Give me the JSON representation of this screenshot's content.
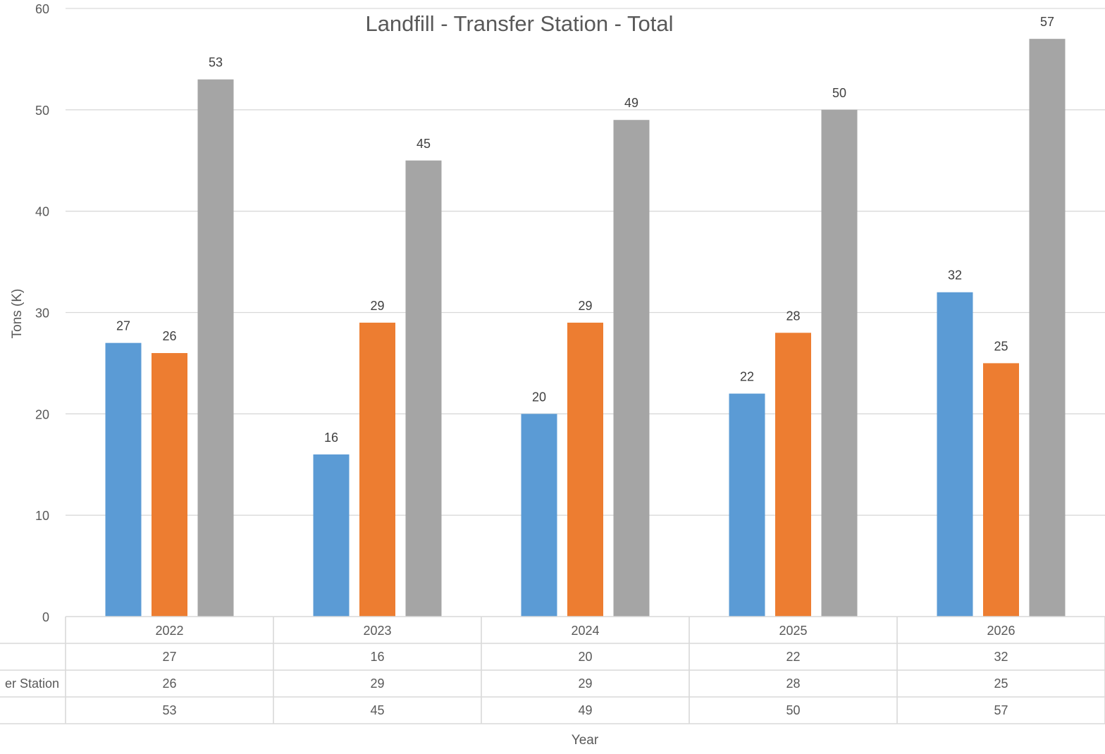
{
  "chart_data": {
    "type": "bar",
    "title": "Landfill - Transfer Station - Total",
    "xlabel": "Year",
    "ylabel": "Tons (K)",
    "ylim": [
      0,
      60
    ],
    "yticks": [
      0,
      10,
      20,
      30,
      40,
      50,
      60
    ],
    "grid": true,
    "legend": "data-table",
    "categories": [
      "2022",
      "2023",
      "2024",
      "2025",
      "2026"
    ],
    "series": [
      {
        "name": "",
        "color": "#5b9bd5",
        "values": [
          27,
          16,
          20,
          22,
          32
        ]
      },
      {
        "name": "er Station",
        "color": "#ed7d31",
        "values": [
          26,
          29,
          29,
          28,
          25
        ]
      },
      {
        "name": "",
        "color": "#a5a5a5",
        "values": [
          53,
          45,
          49,
          50,
          57
        ]
      }
    ]
  }
}
